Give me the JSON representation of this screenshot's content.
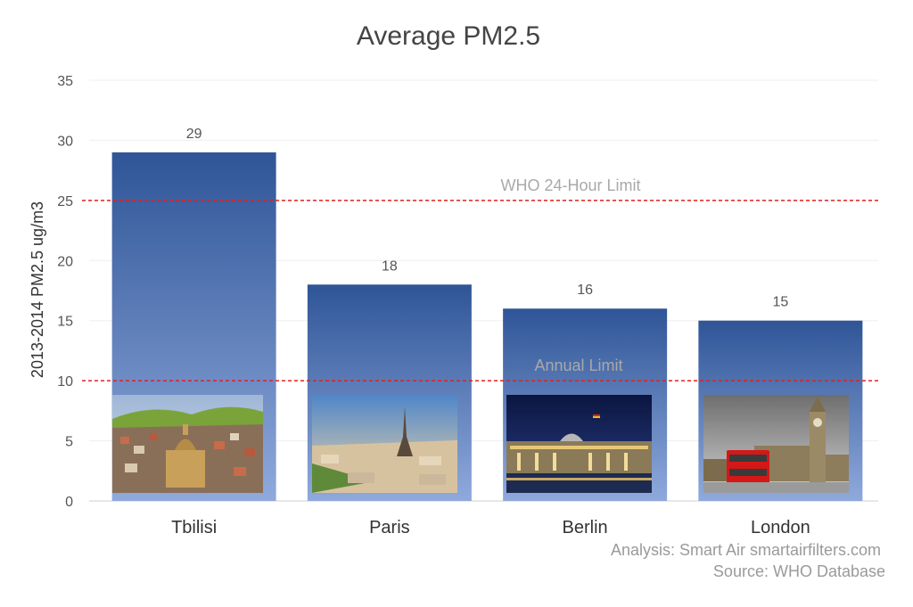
{
  "chart_data": {
    "type": "bar",
    "title": "Average PM2.5",
    "xlabel": "",
    "ylabel": "2013-2014 PM2.5 ug/m3",
    "categories": [
      "Tbilisi",
      "Paris",
      "Berlin",
      "London"
    ],
    "values": [
      29,
      18,
      16,
      15
    ],
    "data_labels": [
      "29",
      "18",
      "16",
      "15"
    ],
    "ylim": [
      0,
      35
    ],
    "yticks": [
      0,
      5,
      10,
      15,
      20,
      25,
      30,
      35
    ],
    "grid": true,
    "legend": "none",
    "reference_lines": [
      {
        "label": "WHO 24-Hour Limit",
        "value": 25,
        "color": "#e02020"
      },
      {
        "label": "Annual Limit",
        "value": 10,
        "color": "#e02020"
      }
    ],
    "colors": {
      "bar_top": "#2f5597",
      "bar_bottom": "#8fa9dc",
      "photo_frame": "#8fa9dc"
    },
    "photos": [
      "Tbilisi cityscape",
      "Eiffel Tower, Paris",
      "Reichstag, Berlin",
      "Big Ben and red bus, London"
    ]
  },
  "footer": {
    "analysis": "Analysis: Smart Air smartairfilters.com",
    "source": "Source: WHO Database"
  }
}
